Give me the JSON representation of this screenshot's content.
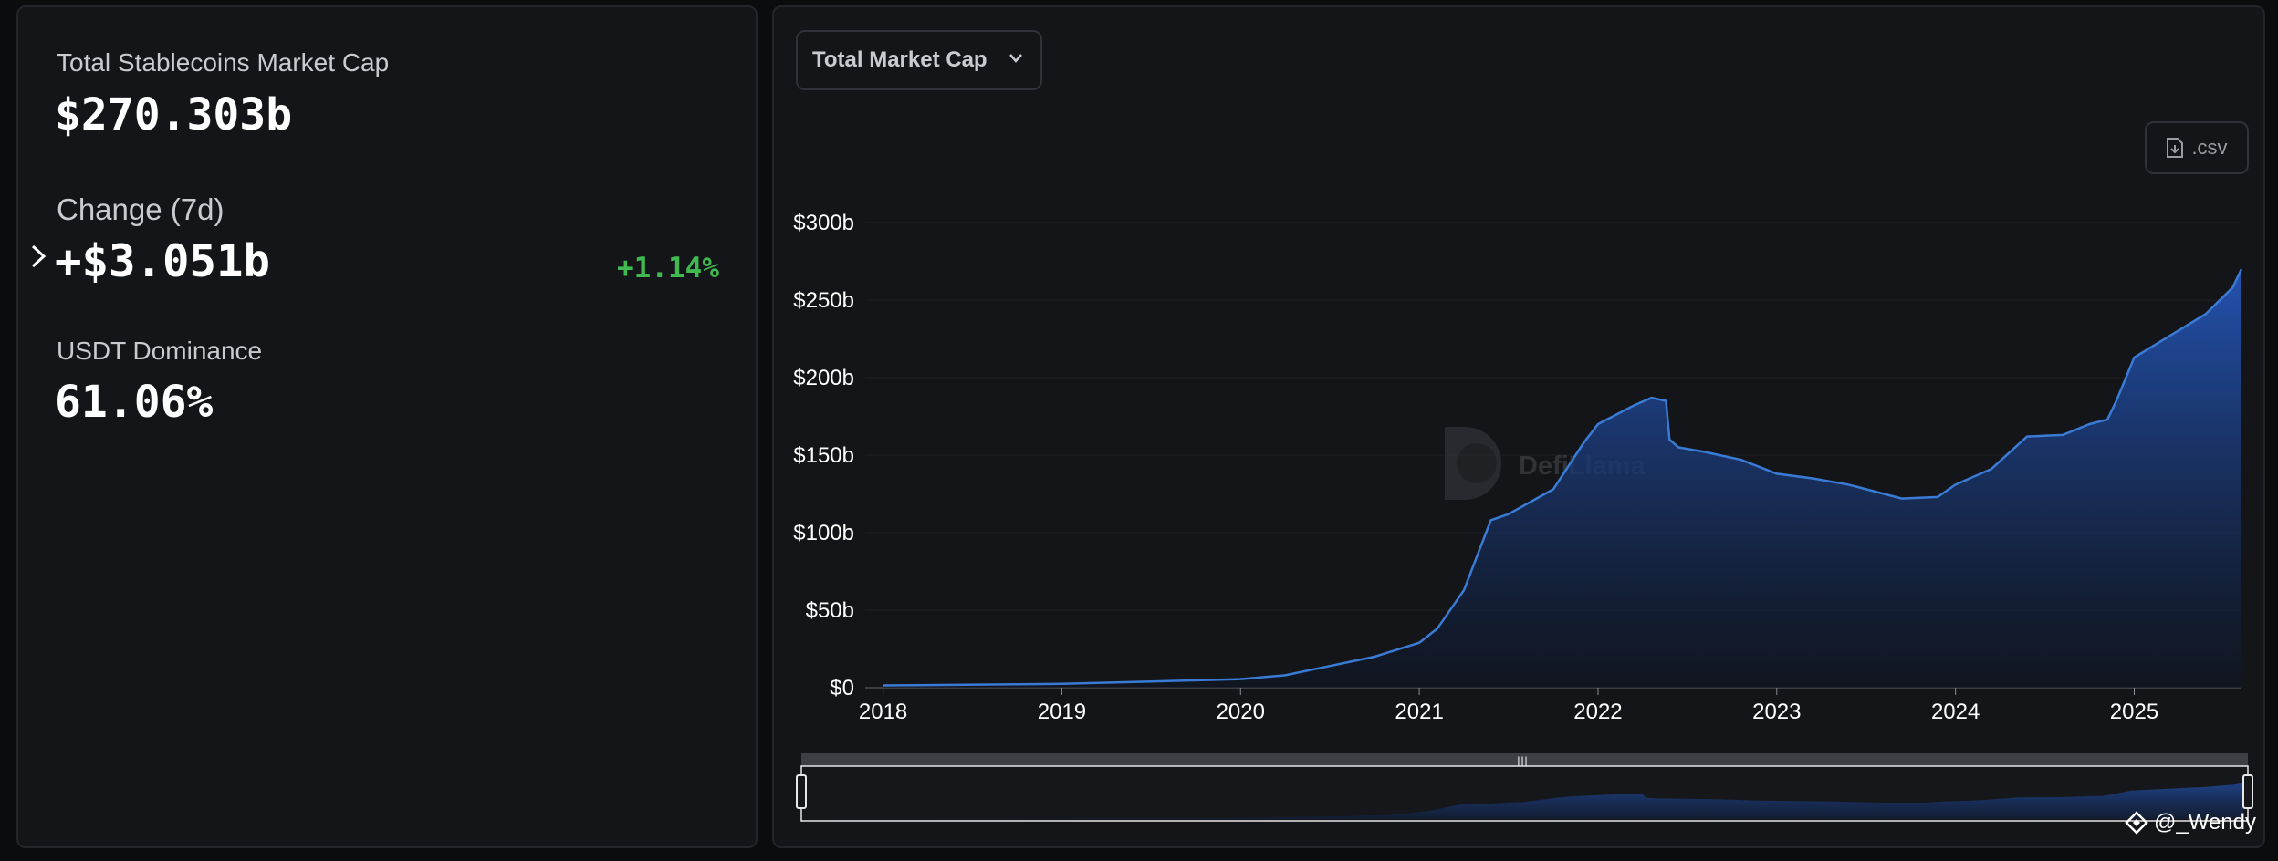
{
  "stats": {
    "total_label": "Total Stablecoins Market Cap",
    "total_value": "$270.303b",
    "change_label": "Change (7d)",
    "change_value": "+$3.051b",
    "change_pct": "+1.14%",
    "dominance_label": "USDT Dominance",
    "dominance_value": "61.06%"
  },
  "controls": {
    "metric_select": "Total Market Cap",
    "csv_label": ".csv"
  },
  "brand_watermark": "DefiLlama",
  "footer_credit": "@_Wendy",
  "colors": {
    "accent": "#3a7bd5",
    "positive": "#3fb950",
    "background": "#141518"
  },
  "chart_data": {
    "type": "area",
    "title": "",
    "xlabel": "",
    "ylabel": "",
    "ylim": [
      0,
      300
    ],
    "y_unit": "b",
    "y_ticks": [
      "$0",
      "$50b",
      "$100b",
      "$150b",
      "$200b",
      "$250b",
      "$300b"
    ],
    "x_ticks": [
      "2018",
      "2019",
      "2020",
      "2021",
      "2022",
      "2023",
      "2024",
      "2025"
    ],
    "grid": true,
    "series": [
      {
        "values": [
          [
            2018.0,
            1.5
          ],
          [
            2019.0,
            2.5
          ],
          [
            2019.5,
            4
          ],
          [
            2020.0,
            5.5
          ],
          [
            2020.25,
            8
          ],
          [
            2020.5,
            14
          ],
          [
            2020.75,
            20
          ],
          [
            2021.0,
            29
          ],
          [
            2021.1,
            38
          ],
          [
            2021.25,
            63
          ],
          [
            2021.4,
            108
          ],
          [
            2021.5,
            112
          ],
          [
            2021.75,
            128
          ],
          [
            2021.92,
            158
          ],
          [
            2022.0,
            170
          ],
          [
            2022.2,
            182
          ],
          [
            2022.3,
            187
          ],
          [
            2022.38,
            185
          ],
          [
            2022.4,
            160
          ],
          [
            2022.45,
            155
          ],
          [
            2022.6,
            152
          ],
          [
            2022.8,
            147
          ],
          [
            2023.0,
            138
          ],
          [
            2023.2,
            135
          ],
          [
            2023.4,
            131
          ],
          [
            2023.6,
            125
          ],
          [
            2023.7,
            122
          ],
          [
            2023.9,
            123
          ],
          [
            2024.0,
            131
          ],
          [
            2024.2,
            141
          ],
          [
            2024.4,
            162
          ],
          [
            2024.6,
            163
          ],
          [
            2024.75,
            170
          ],
          [
            2024.85,
            173
          ],
          [
            2024.9,
            185
          ],
          [
            2025.0,
            213
          ],
          [
            2025.2,
            227
          ],
          [
            2025.4,
            241
          ],
          [
            2025.55,
            258
          ],
          [
            2025.6,
            270
          ]
        ]
      }
    ]
  }
}
